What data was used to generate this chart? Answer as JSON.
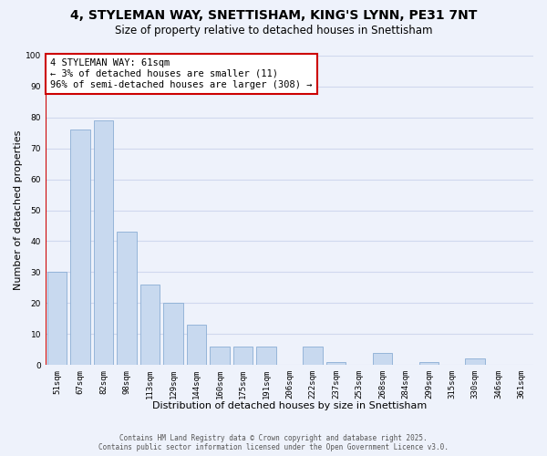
{
  "title": "4, STYLEMAN WAY, SNETTISHAM, KING'S LYNN, PE31 7NT",
  "subtitle": "Size of property relative to detached houses in Snettisham",
  "xlabel": "Distribution of detached houses by size in Snettisham",
  "ylabel": "Number of detached properties",
  "bar_labels": [
    "51sqm",
    "67sqm",
    "82sqm",
    "98sqm",
    "113sqm",
    "129sqm",
    "144sqm",
    "160sqm",
    "175sqm",
    "191sqm",
    "206sqm",
    "222sqm",
    "237sqm",
    "253sqm",
    "268sqm",
    "284sqm",
    "299sqm",
    "315sqm",
    "330sqm",
    "346sqm",
    "361sqm"
  ],
  "bar_values": [
    30,
    76,
    79,
    43,
    26,
    20,
    13,
    6,
    6,
    6,
    0,
    6,
    1,
    0,
    4,
    0,
    1,
    0,
    2,
    0,
    0
  ],
  "bar_color": "#c8d9ef",
  "bar_edge_color": "#8aadd4",
  "vline_color": "#cc0000",
  "vline_x": -0.5,
  "annotation_title": "4 STYLEMAN WAY: 61sqm",
  "annotation_line1": "← 3% of detached houses are smaller (11)",
  "annotation_line2": "96% of semi-detached houses are larger (308) →",
  "annotation_box_color": "#ffffff",
  "annotation_box_edge": "#cc0000",
  "footer_line1": "Contains HM Land Registry data © Crown copyright and database right 2025.",
  "footer_line2": "Contains public sector information licensed under the Open Government Licence v3.0.",
  "ylim": [
    0,
    100
  ],
  "yticks": [
    0,
    10,
    20,
    30,
    40,
    50,
    60,
    70,
    80,
    90,
    100
  ],
  "background_color": "#eef2fb",
  "grid_color": "#d0d8ee",
  "title_fontsize": 10,
  "subtitle_fontsize": 8.5,
  "xlabel_fontsize": 8,
  "ylabel_fontsize": 8,
  "tick_fontsize": 6.5,
  "annotation_fontsize": 7.5,
  "footer_fontsize": 5.5
}
